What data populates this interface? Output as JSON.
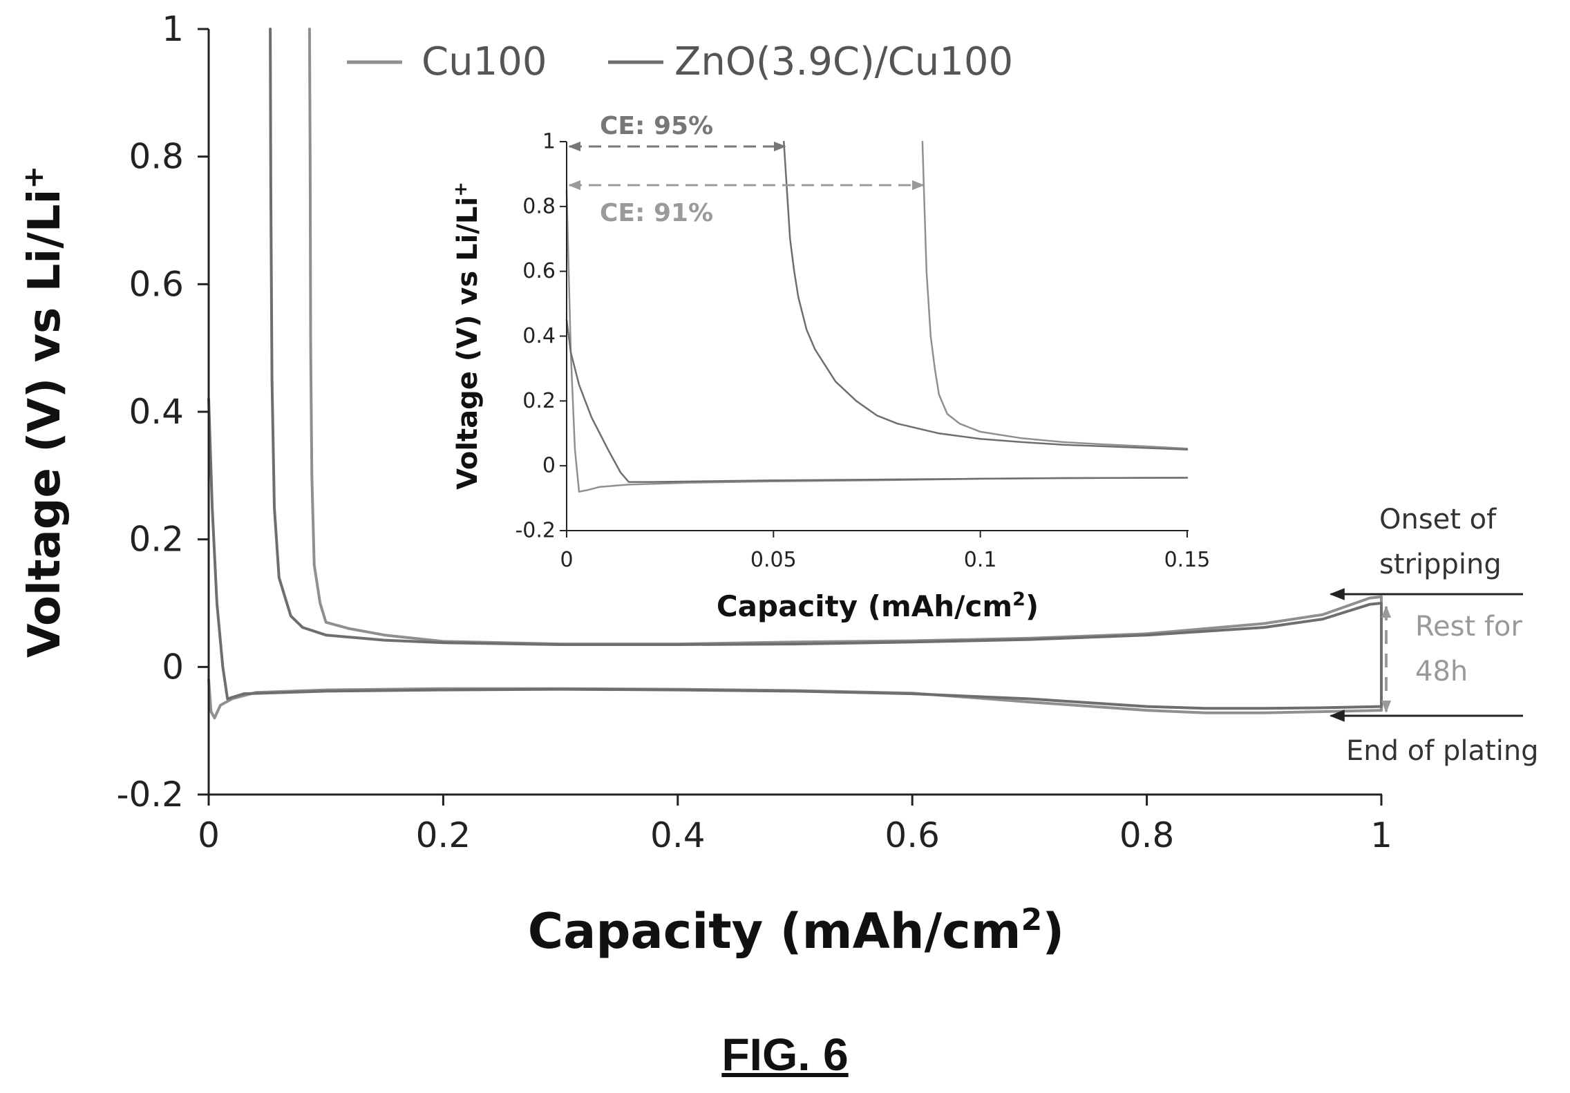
{
  "figure_label": "FIG. 6",
  "chart_data": [
    {
      "type": "line",
      "title": "",
      "xlabel": "Capacity (mAh/cm",
      "xlabel_sup": "2",
      "xlabel_tail": ")",
      "ylabel": "Voltage (V) vs Li/Li",
      "ylabel_sup": "+",
      "xlim": [
        0,
        1
      ],
      "ylim": [
        -0.2,
        1
      ],
      "xticks": [
        "0",
        "0.2",
        "0.4",
        "0.6",
        "0.8",
        "1"
      ],
      "yticks": [
        "-0.2",
        "0",
        "0.2",
        "0.4",
        "0.6",
        "0.8",
        "1"
      ],
      "grid": false,
      "legend_position": "top",
      "series": [
        {
          "name": "Cu100",
          "color": "#8f8f8f",
          "segments": [
            {
              "phase": "plating",
              "x": [
                0,
                0.002,
                0.005,
                0.01,
                0.02,
                0.04,
                0.1,
                0.2,
                0.3,
                0.4,
                0.5,
                0.6,
                0.7,
                0.8,
                0.85,
                0.9,
                0.95,
                1.0
              ],
              "y": [
                -0.02,
                -0.07,
                -0.08,
                -0.06,
                -0.05,
                -0.04,
                -0.036,
                -0.034,
                -0.034,
                -0.035,
                -0.037,
                -0.041,
                -0.055,
                -0.068,
                -0.072,
                -0.072,
                -0.07,
                -0.068
              ]
            },
            {
              "phase": "rest",
              "x": [
                1.0,
                1.0
              ],
              "y": [
                -0.068,
                0.11
              ]
            },
            {
              "phase": "stripping",
              "x": [
                1.0,
                0.99,
                0.95,
                0.9,
                0.8,
                0.7,
                0.6,
                0.5,
                0.4,
                0.3,
                0.2,
                0.15,
                0.12,
                0.1,
                0.095,
                0.09,
                0.088,
                0.087,
                0.0865,
                0.086
              ],
              "y": [
                0.11,
                0.108,
                0.082,
                0.068,
                0.052,
                0.045,
                0.041,
                0.039,
                0.036,
                0.036,
                0.04,
                0.05,
                0.06,
                0.07,
                0.1,
                0.16,
                0.3,
                0.5,
                0.8,
                1.0
              ]
            }
          ]
        },
        {
          "name": "ZnO(3.9C)/Cu100",
          "color": "#6e6e6e",
          "segments": [
            {
              "phase": "plating",
              "x": [
                0,
                0.003,
                0.007,
                0.012,
                0.016,
                0.03,
                0.1,
                0.2,
                0.3,
                0.4,
                0.5,
                0.6,
                0.7,
                0.8,
                0.85,
                0.9,
                0.95,
                1.0
              ],
              "y": [
                0.42,
                0.25,
                0.1,
                0.0,
                -0.05,
                -0.042,
                -0.038,
                -0.036,
                -0.035,
                -0.036,
                -0.038,
                -0.042,
                -0.05,
                -0.062,
                -0.065,
                -0.065,
                -0.064,
                -0.062
              ]
            },
            {
              "phase": "rest",
              "x": [
                1.0,
                1.0
              ],
              "y": [
                -0.062,
                0.1
              ]
            },
            {
              "phase": "stripping",
              "x": [
                1.0,
                0.99,
                0.95,
                0.9,
                0.8,
                0.7,
                0.6,
                0.5,
                0.4,
                0.3,
                0.2,
                0.15,
                0.1,
                0.08,
                0.07,
                0.06,
                0.056,
                0.054,
                0.053,
                0.0525
              ],
              "y": [
                0.1,
                0.098,
                0.075,
                0.062,
                0.05,
                0.043,
                0.039,
                0.036,
                0.035,
                0.035,
                0.038,
                0.042,
                0.05,
                0.062,
                0.08,
                0.14,
                0.25,
                0.45,
                0.75,
                1.0
              ]
            }
          ]
        }
      ],
      "annotations": [
        {
          "text_lines": [
            "Onset of",
            "stripping"
          ],
          "color": "#333333",
          "arrow": "left",
          "at_y": 0.11
        },
        {
          "text_lines": [
            "Rest for",
            "48h"
          ],
          "color": "#999999",
          "arrow": "double-vertical"
        },
        {
          "text_lines": [
            "End of plating"
          ],
          "color": "#333333",
          "arrow": "left",
          "at_y": -0.07
        }
      ]
    },
    {
      "type": "line",
      "title": "",
      "xlabel": "Capacity (mAh/cm",
      "xlabel_sup": "2",
      "xlabel_tail": ")",
      "ylabel": "Voltage (V) vs Li/Li",
      "ylabel_sup": "+",
      "xlim": [
        0,
        0.15
      ],
      "ylim": [
        -0.2,
        1
      ],
      "xticks": [
        "0",
        "0.05",
        "0.1",
        "0.15"
      ],
      "yticks": [
        "-0.2",
        "0",
        "0.2",
        "0.4",
        "0.6",
        "0.8",
        "1"
      ],
      "grid": false,
      "series": [
        {
          "name": "Cu100",
          "color": "#8f8f8f",
          "segments": [
            {
              "phase": "plating",
              "x": [
                0,
                0.0005,
                0.001,
                0.002,
                0.003,
                0.005,
                0.008,
                0.015,
                0.03,
                0.05,
                0.08,
                0.1,
                0.12,
                0.15
              ],
              "y": [
                0.85,
                0.6,
                0.35,
                0.05,
                -0.08,
                -0.075,
                -0.065,
                -0.058,
                -0.052,
                -0.048,
                -0.044,
                -0.04,
                -0.038,
                -0.037
              ]
            },
            {
              "phase": "stripping",
              "x": [
                0.15,
                0.14,
                0.13,
                0.12,
                0.11,
                0.1,
                0.095,
                0.092,
                0.09,
                0.089,
                0.088,
                0.087,
                0.0865,
                0.086
              ],
              "y": [
                0.053,
                0.06,
                0.066,
                0.073,
                0.085,
                0.105,
                0.13,
                0.16,
                0.22,
                0.3,
                0.4,
                0.6,
                0.8,
                1.0
              ]
            }
          ]
        },
        {
          "name": "ZnO(3.9C)/Cu100",
          "color": "#6e6e6e",
          "segments": [
            {
              "phase": "plating",
              "x": [
                0,
                0.0005,
                0.001,
                0.003,
                0.006,
                0.01,
                0.013,
                0.015,
                0.02,
                0.05,
                0.08,
                0.1,
                0.12,
                0.15
              ],
              "y": [
                0.45,
                0.4,
                0.35,
                0.25,
                0.15,
                0.05,
                -0.02,
                -0.05,
                -0.05,
                -0.045,
                -0.042,
                -0.04,
                -0.038,
                -0.037
              ]
            },
            {
              "phase": "stripping",
              "x": [
                0.15,
                0.14,
                0.13,
                0.12,
                0.11,
                0.1,
                0.09,
                0.08,
                0.075,
                0.07,
                0.065,
                0.06,
                0.058,
                0.056,
                0.055,
                0.054,
                0.0535,
                0.053,
                0.0525
              ],
              "y": [
                0.05,
                0.055,
                0.06,
                0.065,
                0.073,
                0.083,
                0.1,
                0.13,
                0.155,
                0.2,
                0.26,
                0.36,
                0.42,
                0.52,
                0.6,
                0.7,
                0.8,
                0.9,
                1.0
              ]
            }
          ]
        }
      ],
      "annotations": [
        {
          "text": "CE: 95%",
          "color": "#777777",
          "arrow": "double-horizontal",
          "x_from": 0,
          "x_to": 0.053,
          "at_y": 0.99
        },
        {
          "text": "CE: 91%",
          "color": "#9a9a9a",
          "arrow": "double-horizontal",
          "x_from": 0,
          "x_to": 0.086,
          "at_y": 0.86
        }
      ]
    }
  ]
}
